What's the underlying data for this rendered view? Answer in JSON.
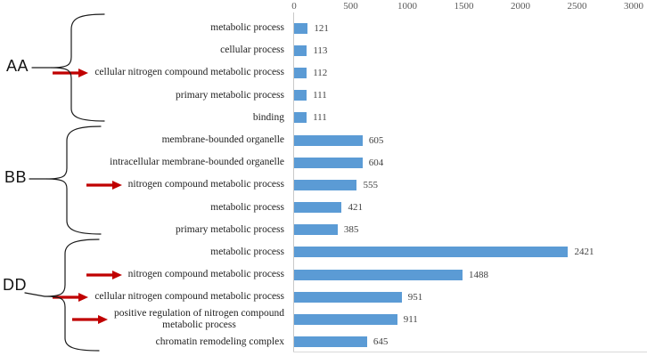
{
  "chart_data": {
    "type": "bar",
    "orientation": "horizontal",
    "title": "",
    "xlabel": "",
    "ylabel": "",
    "xlim": [
      0,
      3000
    ],
    "x_ticks": [
      "0",
      "500",
      "1000",
      "1500",
      "2000",
      "2500",
      "3000"
    ],
    "axis_position": "top",
    "grid": false,
    "legend": null,
    "bar_color": "#5b9bd5",
    "arrow_color": "#c00000",
    "groups": [
      {
        "name": "AA",
        "rows": [
          {
            "label": "metabolic process",
            "value": 121,
            "arrow": false
          },
          {
            "label": "cellular process",
            "value": 113,
            "arrow": false
          },
          {
            "label": "cellular nitrogen compound metabolic process",
            "value": 112,
            "arrow": true
          },
          {
            "label": "primary metabolic process",
            "value": 111,
            "arrow": false
          },
          {
            "label": "binding",
            "value": 111,
            "arrow": false
          }
        ]
      },
      {
        "name": "BB",
        "rows": [
          {
            "label": "membrane-bounded organelle",
            "value": 605,
            "arrow": false
          },
          {
            "label": "intracellular membrane-bounded organelle",
            "value": 604,
            "arrow": false
          },
          {
            "label": "nitrogen compound metabolic process",
            "value": 555,
            "arrow": true
          },
          {
            "label": "metabolic process",
            "value": 421,
            "arrow": false
          },
          {
            "label": "primary metabolic process",
            "value": 385,
            "arrow": false
          }
        ]
      },
      {
        "name": "DD",
        "rows": [
          {
            "label": "metabolic process",
            "value": 2421,
            "arrow": false
          },
          {
            "label": "nitrogen compound metabolic process",
            "value": 1488,
            "arrow": true
          },
          {
            "label": "cellular nitrogen compound metabolic process",
            "value": 951,
            "arrow": true
          },
          {
            "label": "positive regulation of nitrogen compound metabolic process",
            "value": 911,
            "arrow": true,
            "label_lines": [
              "positive regulation of nitrogen compound",
              "metabolic process"
            ]
          },
          {
            "label": "chromatin remodeling complex",
            "value": 645,
            "arrow": false
          }
        ]
      }
    ]
  }
}
